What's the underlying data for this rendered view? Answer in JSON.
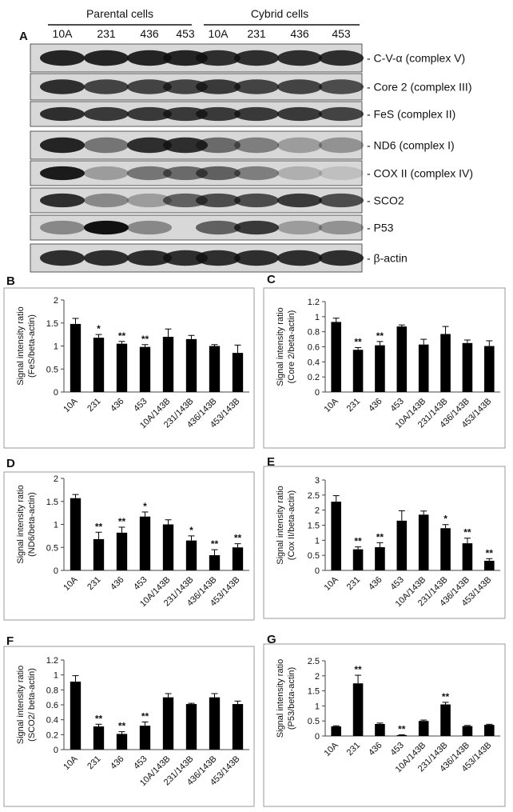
{
  "blot": {
    "panel": "A",
    "groups": [
      "Parental cells",
      "Cybrid cells"
    ],
    "lanes": [
      "10A",
      "231",
      "436",
      "453",
      "10A",
      "231",
      "436",
      "453"
    ],
    "bands": [
      "- C-V-α (complex V)",
      "- Core 2 (complex III)",
      "- FeS (complex II)",
      "- ND6 (complex I)",
      "- COX II (complex IV)",
      "- SCO2",
      "- P53",
      "- β-actin"
    ]
  },
  "chart_data": [
    {
      "type": "bar",
      "panel": "B",
      "ylabel": [
        "Signal intensity ratio",
        "(FeS/beta-actin)"
      ],
      "categories": [
        "10A",
        "231",
        "436",
        "453",
        "10A/143B",
        "231/143B",
        "436/143B",
        "453/143B"
      ],
      "values": [
        1.48,
        1.18,
        1.05,
        0.98,
        1.2,
        1.15,
        1.0,
        0.85
      ],
      "errors": [
        0.12,
        0.07,
        0.05,
        0.05,
        0.17,
        0.08,
        0.03,
        0.17
      ],
      "annotations": [
        null,
        "*",
        "**",
        "**",
        null,
        null,
        null,
        null
      ],
      "color": "#000000",
      "ylim": [
        0,
        2
      ],
      "yticks": [
        0,
        0.5,
        1,
        1.5,
        2
      ]
    },
    {
      "type": "bar",
      "panel": "C",
      "ylabel": [
        "Signal intensity ratio",
        "(Core 2/beta-actin)"
      ],
      "categories": [
        "10A",
        "231",
        "436",
        "453",
        "10A/143B",
        "231/143B",
        "436/143B",
        "453/143B"
      ],
      "values": [
        0.93,
        0.56,
        0.62,
        0.87,
        0.63,
        0.77,
        0.65,
        0.61
      ],
      "errors": [
        0.05,
        0.03,
        0.05,
        0.02,
        0.07,
        0.1,
        0.04,
        0.07
      ],
      "annotations": [
        null,
        "**",
        "**",
        null,
        null,
        null,
        null,
        null
      ],
      "color": "#000000",
      "ylim": [
        0,
        1.2
      ],
      "yticks": [
        0,
        0.2,
        0.4,
        0.6,
        0.8,
        1,
        1.2
      ]
    },
    {
      "type": "bar",
      "panel": "D",
      "ylabel": [
        "Signal intensity ratio",
        "(ND6/beta-actin)"
      ],
      "categories": [
        "10A",
        "231",
        "436",
        "453",
        "10A/143B",
        "231/143B",
        "436/143B",
        "453/143B"
      ],
      "values": [
        1.57,
        0.68,
        0.82,
        1.17,
        1.0,
        0.65,
        0.33,
        0.5
      ],
      "errors": [
        0.08,
        0.15,
        0.12,
        0.1,
        0.1,
        0.1,
        0.12,
        0.08
      ],
      "annotations": [
        null,
        "**",
        "**",
        "*",
        null,
        "*",
        "**",
        "**"
      ],
      "color": "#000000",
      "ylim": [
        0,
        2
      ],
      "yticks": [
        0,
        0.5,
        1,
        1.5,
        2
      ]
    },
    {
      "type": "bar",
      "panel": "E",
      "ylabel": [
        "Signal intensity ratio",
        "(Cox II/beta-actin)"
      ],
      "categories": [
        "10A",
        "231",
        "436",
        "453",
        "10A/143B",
        "231/143B",
        "436/143B",
        "453/143B"
      ],
      "values": [
        2.28,
        0.7,
        0.77,
        1.65,
        1.85,
        1.4,
        0.9,
        0.32
      ],
      "errors": [
        0.2,
        0.08,
        0.15,
        0.33,
        0.12,
        0.12,
        0.17,
        0.07
      ],
      "annotations": [
        null,
        "**",
        "**",
        null,
        null,
        "*",
        "**",
        "**"
      ],
      "color": "#000000",
      "ylim": [
        0,
        3
      ],
      "yticks": [
        0,
        0.5,
        1,
        1.5,
        2,
        2.5,
        3
      ]
    },
    {
      "type": "bar",
      "panel": "F",
      "ylabel": [
        "Signal intensity ratio",
        "(SCO2/ beta-actin)"
      ],
      "categories": [
        "10A",
        "231",
        "436",
        "453",
        "10A/143B",
        "231/143B",
        "436/143B",
        "453/143B"
      ],
      "values": [
        0.91,
        0.31,
        0.21,
        0.32,
        0.7,
        0.61,
        0.7,
        0.61
      ],
      "errors": [
        0.08,
        0.03,
        0.03,
        0.05,
        0.05,
        0.01,
        0.05,
        0.04
      ],
      "annotations": [
        null,
        "**",
        "**",
        "**",
        null,
        null,
        null,
        null
      ],
      "color": "#000000",
      "ylim": [
        0,
        1.2
      ],
      "yticks": [
        0,
        0.2,
        0.4,
        0.6,
        0.8,
        1,
        1.2
      ]
    },
    {
      "type": "bar",
      "panel": "G",
      "ylabel": [
        "Signal intensity ratio",
        "(P53/beta-actin)"
      ],
      "categories": [
        "10A",
        "231",
        "436",
        "453",
        "10A/143B",
        "231/143B",
        "436/143B",
        "453/143B"
      ],
      "values": [
        0.32,
        1.75,
        0.4,
        0.03,
        0.5,
        1.05,
        0.33,
        0.37
      ],
      "errors": [
        0.02,
        0.27,
        0.03,
        0.01,
        0.03,
        0.07,
        0.02,
        0.02
      ],
      "annotations": [
        null,
        "**",
        null,
        "**",
        null,
        "**",
        null,
        null
      ],
      "color": "#000000",
      "ylim": [
        0,
        2.5
      ],
      "yticks": [
        0,
        0.5,
        1,
        1.5,
        2,
        2.5
      ]
    }
  ]
}
